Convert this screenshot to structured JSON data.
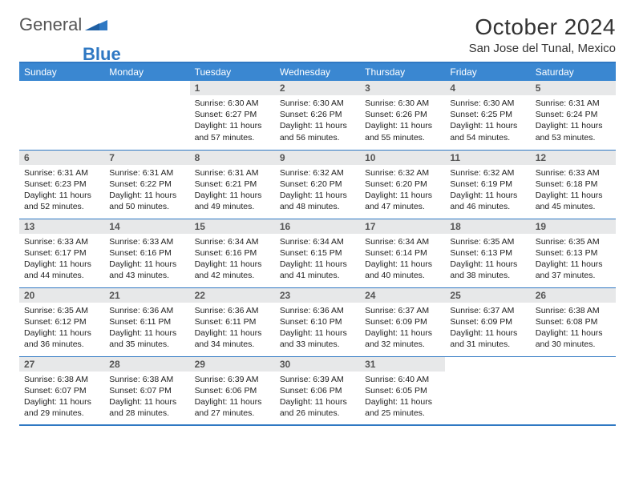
{
  "brand": {
    "part1": "General",
    "part2": "Blue"
  },
  "title": "October 2024",
  "location": "San Jose del Tunal, Mexico",
  "colors": {
    "accent": "#3a87d1",
    "rule": "#2f78c3",
    "daybar": "#e7e8e9",
    "bg": "#ffffff"
  },
  "weekdays": [
    "Sunday",
    "Monday",
    "Tuesday",
    "Wednesday",
    "Thursday",
    "Friday",
    "Saturday"
  ],
  "weeks": [
    [
      null,
      null,
      {
        "n": "1",
        "sr": "6:30 AM",
        "ss": "6:27 PM",
        "dl": "11 hours and 57 minutes."
      },
      {
        "n": "2",
        "sr": "6:30 AM",
        "ss": "6:26 PM",
        "dl": "11 hours and 56 minutes."
      },
      {
        "n": "3",
        "sr": "6:30 AM",
        "ss": "6:26 PM",
        "dl": "11 hours and 55 minutes."
      },
      {
        "n": "4",
        "sr": "6:30 AM",
        "ss": "6:25 PM",
        "dl": "11 hours and 54 minutes."
      },
      {
        "n": "5",
        "sr": "6:31 AM",
        "ss": "6:24 PM",
        "dl": "11 hours and 53 minutes."
      }
    ],
    [
      {
        "n": "6",
        "sr": "6:31 AM",
        "ss": "6:23 PM",
        "dl": "11 hours and 52 minutes."
      },
      {
        "n": "7",
        "sr": "6:31 AM",
        "ss": "6:22 PM",
        "dl": "11 hours and 50 minutes."
      },
      {
        "n": "8",
        "sr": "6:31 AM",
        "ss": "6:21 PM",
        "dl": "11 hours and 49 minutes."
      },
      {
        "n": "9",
        "sr": "6:32 AM",
        "ss": "6:20 PM",
        "dl": "11 hours and 48 minutes."
      },
      {
        "n": "10",
        "sr": "6:32 AM",
        "ss": "6:20 PM",
        "dl": "11 hours and 47 minutes."
      },
      {
        "n": "11",
        "sr": "6:32 AM",
        "ss": "6:19 PM",
        "dl": "11 hours and 46 minutes."
      },
      {
        "n": "12",
        "sr": "6:33 AM",
        "ss": "6:18 PM",
        "dl": "11 hours and 45 minutes."
      }
    ],
    [
      {
        "n": "13",
        "sr": "6:33 AM",
        "ss": "6:17 PM",
        "dl": "11 hours and 44 minutes."
      },
      {
        "n": "14",
        "sr": "6:33 AM",
        "ss": "6:16 PM",
        "dl": "11 hours and 43 minutes."
      },
      {
        "n": "15",
        "sr": "6:34 AM",
        "ss": "6:16 PM",
        "dl": "11 hours and 42 minutes."
      },
      {
        "n": "16",
        "sr": "6:34 AM",
        "ss": "6:15 PM",
        "dl": "11 hours and 41 minutes."
      },
      {
        "n": "17",
        "sr": "6:34 AM",
        "ss": "6:14 PM",
        "dl": "11 hours and 40 minutes."
      },
      {
        "n": "18",
        "sr": "6:35 AM",
        "ss": "6:13 PM",
        "dl": "11 hours and 38 minutes."
      },
      {
        "n": "19",
        "sr": "6:35 AM",
        "ss": "6:13 PM",
        "dl": "11 hours and 37 minutes."
      }
    ],
    [
      {
        "n": "20",
        "sr": "6:35 AM",
        "ss": "6:12 PM",
        "dl": "11 hours and 36 minutes."
      },
      {
        "n": "21",
        "sr": "6:36 AM",
        "ss": "6:11 PM",
        "dl": "11 hours and 35 minutes."
      },
      {
        "n": "22",
        "sr": "6:36 AM",
        "ss": "6:11 PM",
        "dl": "11 hours and 34 minutes."
      },
      {
        "n": "23",
        "sr": "6:36 AM",
        "ss": "6:10 PM",
        "dl": "11 hours and 33 minutes."
      },
      {
        "n": "24",
        "sr": "6:37 AM",
        "ss": "6:09 PM",
        "dl": "11 hours and 32 minutes."
      },
      {
        "n": "25",
        "sr": "6:37 AM",
        "ss": "6:09 PM",
        "dl": "11 hours and 31 minutes."
      },
      {
        "n": "26",
        "sr": "6:38 AM",
        "ss": "6:08 PM",
        "dl": "11 hours and 30 minutes."
      }
    ],
    [
      {
        "n": "27",
        "sr": "6:38 AM",
        "ss": "6:07 PM",
        "dl": "11 hours and 29 minutes."
      },
      {
        "n": "28",
        "sr": "6:38 AM",
        "ss": "6:07 PM",
        "dl": "11 hours and 28 minutes."
      },
      {
        "n": "29",
        "sr": "6:39 AM",
        "ss": "6:06 PM",
        "dl": "11 hours and 27 minutes."
      },
      {
        "n": "30",
        "sr": "6:39 AM",
        "ss": "6:06 PM",
        "dl": "11 hours and 26 minutes."
      },
      {
        "n": "31",
        "sr": "6:40 AM",
        "ss": "6:05 PM",
        "dl": "11 hours and 25 minutes."
      },
      null,
      null
    ]
  ],
  "labels": {
    "sunrise": "Sunrise: ",
    "sunset": "Sunset: ",
    "daylight": "Daylight: "
  }
}
